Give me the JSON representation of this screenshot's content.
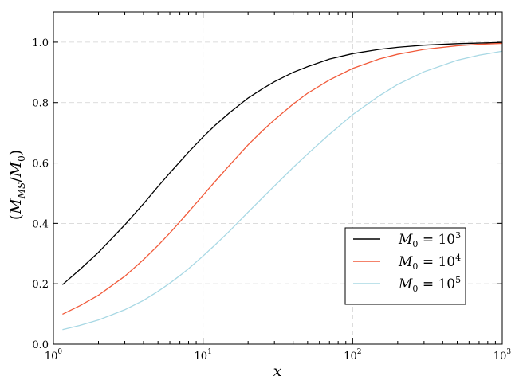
{
  "chart_data": {
    "type": "line",
    "xscale": "log",
    "xlim": [
      1,
      1000
    ],
    "ylim": [
      0,
      1.1
    ],
    "xlabel": "x",
    "ylabel": "(M_MS/M_0)",
    "grid": true,
    "legend_position": "lower-right",
    "x_ticks": [
      {
        "base": "10",
        "exp": "0",
        "value": 1
      },
      {
        "base": "10",
        "exp": "1",
        "value": 10
      },
      {
        "base": "10",
        "exp": "2",
        "value": 100
      },
      {
        "base": "10",
        "exp": "3",
        "value": 1000
      }
    ],
    "y_ticks": [
      "0.0",
      "0.2",
      "0.4",
      "0.6",
      "0.8",
      "1.0"
    ],
    "series": [
      {
        "name": "M_0 = 10^3",
        "legend": {
          "var": "M",
          "sub": "0",
          "eq": " = 10",
          "sup": "3"
        },
        "color": "#000000",
        "x": [
          1.15,
          1.5,
          2,
          3,
          4,
          5,
          6,
          7,
          8,
          10,
          12,
          15,
          20,
          25,
          30,
          40,
          50,
          70,
          100,
          150,
          200,
          300,
          500,
          700,
          1000
        ],
        "y": [
          0.197,
          0.247,
          0.304,
          0.395,
          0.465,
          0.522,
          0.567,
          0.604,
          0.636,
          0.686,
          0.724,
          0.766,
          0.815,
          0.846,
          0.869,
          0.9,
          0.919,
          0.944,
          0.962,
          0.976,
          0.983,
          0.99,
          0.995,
          0.997,
          0.999
        ]
      },
      {
        "name": "M_0 = 10^4",
        "legend": {
          "var": "M",
          "sub": "0",
          "eq": " = 10",
          "sup": "4"
        },
        "color": "#f15a3a",
        "x": [
          1.15,
          1.5,
          2,
          3,
          4,
          5,
          6,
          7,
          8,
          10,
          12,
          15,
          20,
          25,
          30,
          40,
          50,
          70,
          100,
          150,
          200,
          300,
          500,
          700,
          1000
        ],
        "y": [
          0.099,
          0.127,
          0.162,
          0.225,
          0.28,
          0.327,
          0.368,
          0.405,
          0.438,
          0.493,
          0.538,
          0.592,
          0.66,
          0.707,
          0.743,
          0.795,
          0.831,
          0.875,
          0.913,
          0.944,
          0.96,
          0.976,
          0.988,
          0.993,
          0.996
        ]
      },
      {
        "name": "M_0 = 10^5",
        "legend": {
          "var": "M",
          "sub": "0",
          "eq": " = 10",
          "sup": "5"
        },
        "color": "#a8d8e4",
        "x": [
          1.15,
          1.5,
          2,
          3,
          4,
          5,
          6,
          7,
          8,
          10,
          12,
          15,
          20,
          25,
          30,
          40,
          50,
          70,
          100,
          150,
          200,
          300,
          500,
          700,
          1000
        ],
        "y": [
          0.048,
          0.062,
          0.08,
          0.114,
          0.145,
          0.175,
          0.202,
          0.227,
          0.25,
          0.292,
          0.328,
          0.374,
          0.437,
          0.485,
          0.524,
          0.585,
          0.63,
          0.695,
          0.76,
          0.822,
          0.86,
          0.902,
          0.94,
          0.957,
          0.97
        ]
      }
    ]
  }
}
